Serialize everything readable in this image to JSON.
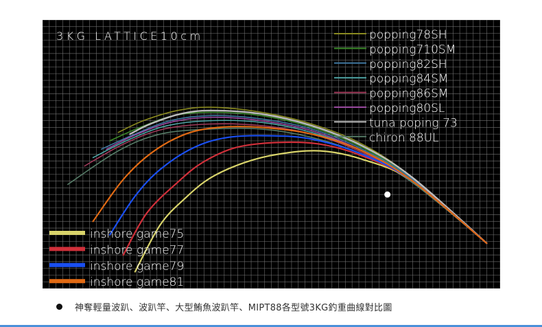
{
  "caption": "神奪輕量波趴、波趴竿、大型鮪魚波趴竿、MIPT88各型號3KG釣重曲線對比圖",
  "chart_data": {
    "type": "line",
    "title": "3KG LATTICE10cm",
    "xlabel": "",
    "ylabel": "",
    "grid": true,
    "grid_spacing": "10cm",
    "background": "#000000",
    "gridline_color": "#777777",
    "x_unit": "cm",
    "y_unit": "cm",
    "xlim": [
      0,
      272
    ],
    "ylim": [
      0,
      160
    ],
    "legends": [
      {
        "placement": "top-right",
        "entries": [
          "popping78SH",
          "popping710SM",
          "popping82SH",
          "popping84SM",
          "popping86SM",
          "popping80SL",
          "tuna poping 73",
          "chiron 88UL"
        ]
      },
      {
        "placement": "bottom-left",
        "entries": [
          "inshore game75",
          "inshore game77",
          "inshore game79",
          "inshore game81"
        ]
      }
    ],
    "series": [
      {
        "name": "popping78SH",
        "color": "#8a8a20",
        "width": 1.6,
        "x": [
          264,
          220,
          190,
          160,
          130,
          100,
          80,
          60,
          45
        ],
        "y": [
          27,
          66,
          86,
          98,
          105,
          108,
          106,
          100,
          93
        ]
      },
      {
        "name": "popping710SM",
        "color": "#3c8a2a",
        "width": 1.6,
        "x": [
          264,
          220,
          190,
          160,
          130,
          100,
          78,
          58,
          40
        ],
        "y": [
          27,
          65,
          84,
          96,
          103,
          105,
          103,
          96,
          88
        ]
      },
      {
        "name": "popping82SH",
        "color": "#3f77a0",
        "width": 1.6,
        "x": [
          264,
          220,
          190,
          160,
          130,
          100,
          76,
          55,
          35
        ],
        "y": [
          27,
          65,
          83,
          95,
          101,
          103,
          100,
          92,
          83
        ]
      },
      {
        "name": "popping84SM",
        "color": "#4fa6a6",
        "width": 1.6,
        "x": [
          264,
          220,
          190,
          160,
          130,
          100,
          74,
          52,
          30
        ],
        "y": [
          27,
          64,
          82,
          93,
          99,
          100,
          97,
          89,
          78
        ]
      },
      {
        "name": "popping86SM",
        "color": "#a03a5a",
        "width": 1.6,
        "x": [
          264,
          220,
          190,
          160,
          130,
          100,
          72,
          48,
          25
        ],
        "y": [
          27,
          64,
          81,
          92,
          97,
          98,
          95,
          86,
          73
        ]
      },
      {
        "name": "popping80SL",
        "color": "#9a4aa0",
        "width": 1.6,
        "x": [
          264,
          220,
          190,
          160,
          130,
          100,
          76,
          54,
          38
        ],
        "y": [
          27,
          64,
          82,
          94,
          100,
          102,
          99,
          91,
          83
        ]
      },
      {
        "name": "tuna poping 73",
        "color": "#bdbdbd",
        "width": 2.4,
        "x": [
          264,
          220,
          190,
          160,
          130,
          100,
          82,
          64,
          52
        ],
        "y": [
          27,
          66,
          85,
          97,
          104,
          106,
          104,
          98,
          92
        ]
      },
      {
        "name": "chiron 88UL",
        "color": "#557a66",
        "width": 1.6,
        "x": [
          264,
          220,
          190,
          160,
          130,
          100,
          70,
          45,
          15
        ],
        "y": [
          27,
          63,
          80,
          90,
          95,
          95,
          92,
          82,
          62
        ]
      },
      {
        "name": "inshore game75",
        "color": "#d8d36a",
        "width": 2.2,
        "x": [
          264,
          220,
          190,
          165,
          140,
          120,
          100,
          85,
          70,
          55
        ],
        "y": [
          27,
          64,
          77,
          82,
          80,
          75,
          66,
          54,
          38,
          10
        ]
      },
      {
        "name": "inshore game77",
        "color": "#d0303a",
        "width": 2.2,
        "x": [
          264,
          220,
          190,
          165,
          140,
          115,
          95,
          80,
          62,
          48
        ],
        "y": [
          27,
          64,
          79,
          86,
          87,
          84,
          75,
          63,
          45,
          20
        ]
      },
      {
        "name": "inshore game79",
        "color": "#1a4ff0",
        "width": 2.2,
        "x": [
          264,
          220,
          190,
          160,
          135,
          110,
          90,
          70,
          55,
          40
        ],
        "y": [
          27,
          64,
          80,
          89,
          91,
          90,
          84,
          71,
          55,
          32
        ]
      },
      {
        "name": "inshore game81",
        "color": "#e06a14",
        "width": 2.2,
        "x": [
          264,
          220,
          190,
          160,
          130,
          105,
          85,
          65,
          48,
          30
        ],
        "y": [
          27,
          64,
          82,
          92,
          96,
          96,
          92,
          81,
          65,
          40
        ]
      }
    ],
    "marker": {
      "x": 205,
      "y": 56,
      "color": "#ffffff"
    }
  }
}
